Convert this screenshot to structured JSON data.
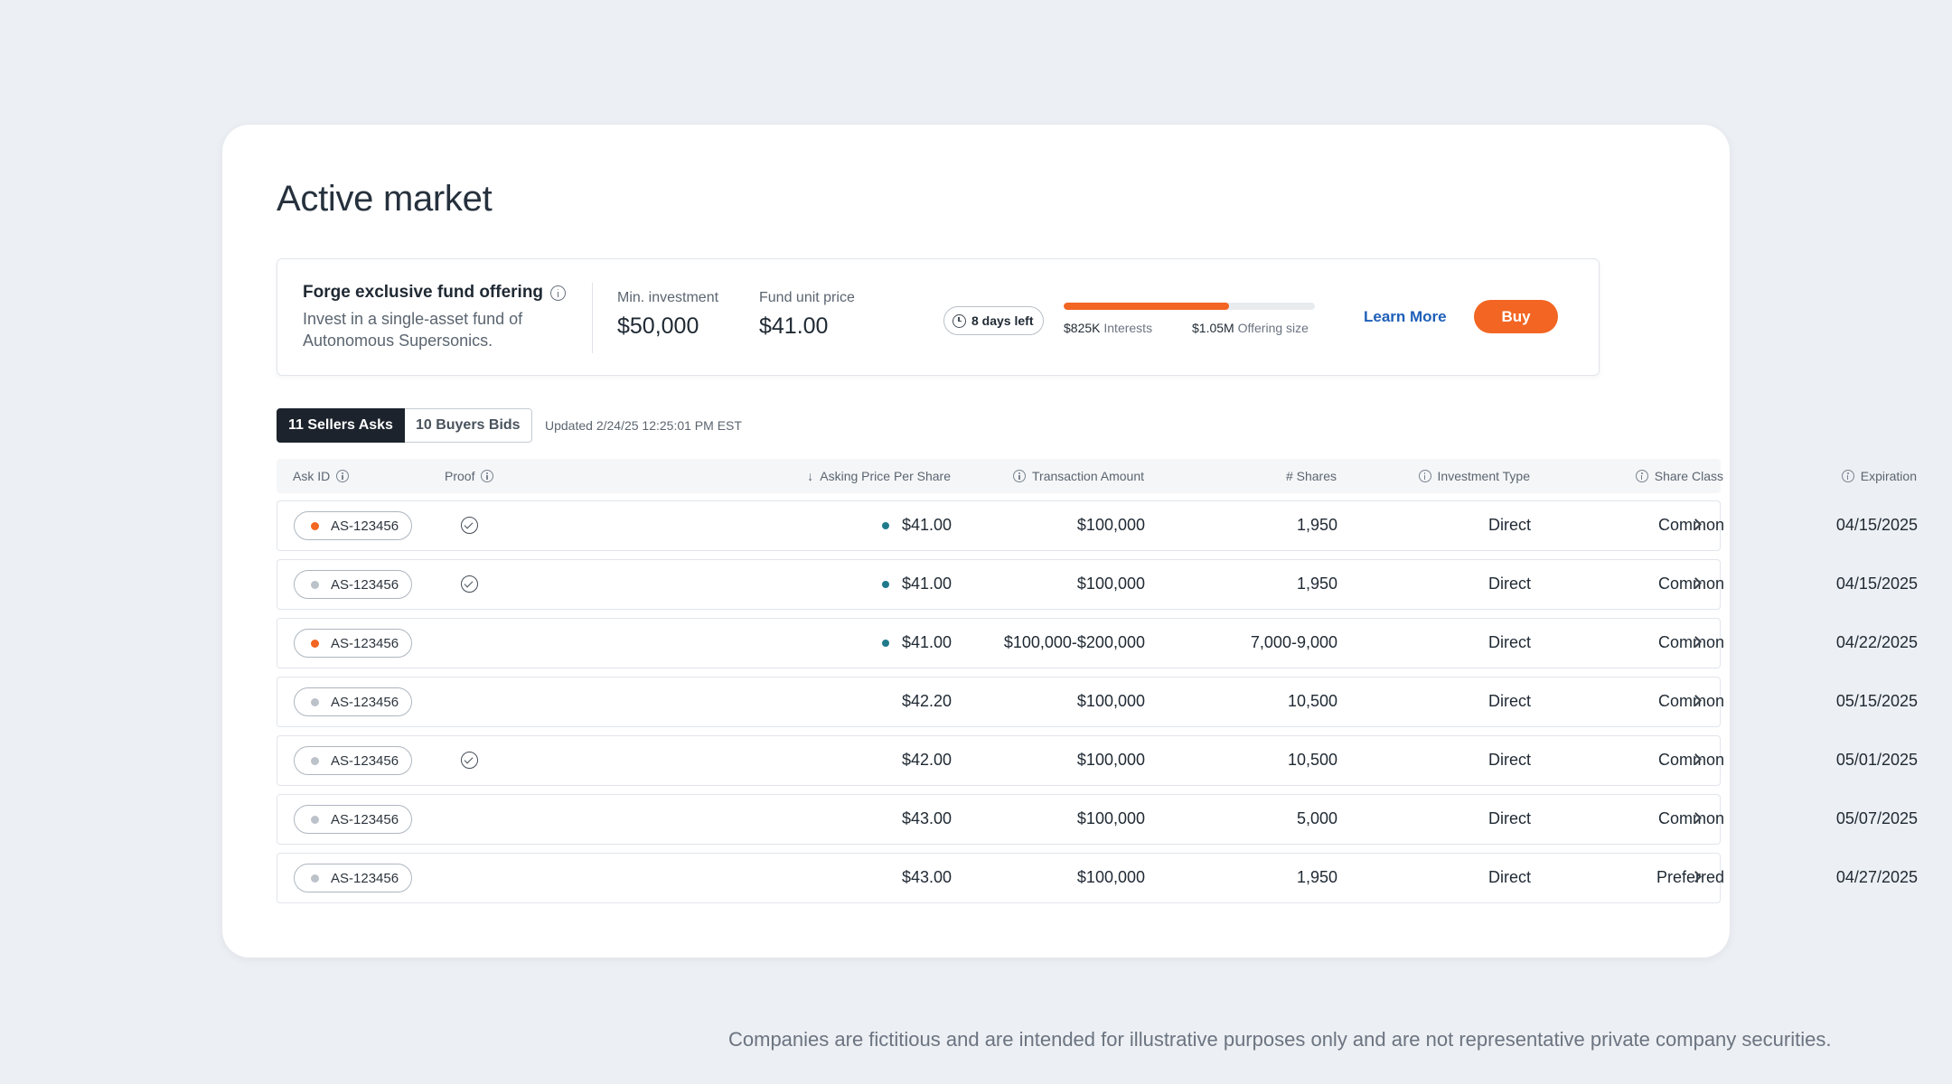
{
  "page": {
    "title": "Active market"
  },
  "offering": {
    "title": "Forge exclusive fund offering",
    "description": "Invest in a single-asset fund of Autonomous Supersonics.",
    "min_investment_label": "Min. investment",
    "min_investment_value": "$50,000",
    "unit_price_label": "Fund unit price",
    "unit_price_value": "$41.00",
    "days_left": "8 days left",
    "progress_fraction": 0.66,
    "interests_value": "$825K",
    "interests_label": "Interests",
    "offering_size_value": "$1.05M",
    "offering_size_label": "Offering size",
    "learn_more_label": "Learn More",
    "buy_label": "Buy",
    "accent_color": "#f26522"
  },
  "tabs": [
    {
      "label": "11 Sellers Asks",
      "active": true
    },
    {
      "label": "10 Buyers Bids",
      "active": false
    }
  ],
  "updated_text": "Updated 2/24/25 12:25:01 PM EST",
  "table": {
    "headers": {
      "ask_id": "Ask ID",
      "proof": "Proof",
      "asking_price": "Asking Price Per Share",
      "transaction_amount": "Transaction Amount",
      "shares": "# Shares",
      "investment_type": "Investment Type",
      "share_class": "Share Class",
      "expiration": "Expiration"
    },
    "rows": [
      {
        "ask_id": "AS-123456",
        "status": "orange",
        "proof": true,
        "price_dot": true,
        "price": "$41.00",
        "amount": "$100,000",
        "shares": "1,950",
        "type": "Direct",
        "class": "Common",
        "expiration": "04/15/2025"
      },
      {
        "ask_id": "AS-123456",
        "status": "gray",
        "proof": true,
        "price_dot": true,
        "price": "$41.00",
        "amount": "$100,000",
        "shares": "1,950",
        "type": "Direct",
        "class": "Common",
        "expiration": "04/15/2025"
      },
      {
        "ask_id": "AS-123456",
        "status": "orange",
        "proof": false,
        "price_dot": true,
        "price": "$41.00",
        "amount": "$100,000-$200,000",
        "shares": "7,000-9,000",
        "type": "Direct",
        "class": "Common",
        "expiration": "04/22/2025"
      },
      {
        "ask_id": "AS-123456",
        "status": "gray",
        "proof": false,
        "price_dot": false,
        "price": "$42.20",
        "amount": "$100,000",
        "shares": "10,500",
        "type": "Direct",
        "class": "Common",
        "expiration": "05/15/2025"
      },
      {
        "ask_id": "AS-123456",
        "status": "gray",
        "proof": true,
        "price_dot": false,
        "price": "$42.00",
        "amount": "$100,000",
        "shares": "10,500",
        "type": "Direct",
        "class": "Common",
        "expiration": "05/01/2025"
      },
      {
        "ask_id": "AS-123456",
        "status": "gray",
        "proof": false,
        "price_dot": false,
        "price": "$43.00",
        "amount": "$100,000",
        "shares": "5,000",
        "type": "Direct",
        "class": "Common",
        "expiration": "05/07/2025"
      },
      {
        "ask_id": "AS-123456",
        "status": "gray",
        "proof": false,
        "price_dot": false,
        "price": "$43.00",
        "amount": "$100,000",
        "shares": "1,950",
        "type": "Direct",
        "class": "Preferred",
        "expiration": "04/27/2025"
      }
    ]
  },
  "disclaimer": "Companies are fictitious and are intended for illustrative purposes only and are not representative private company securities."
}
